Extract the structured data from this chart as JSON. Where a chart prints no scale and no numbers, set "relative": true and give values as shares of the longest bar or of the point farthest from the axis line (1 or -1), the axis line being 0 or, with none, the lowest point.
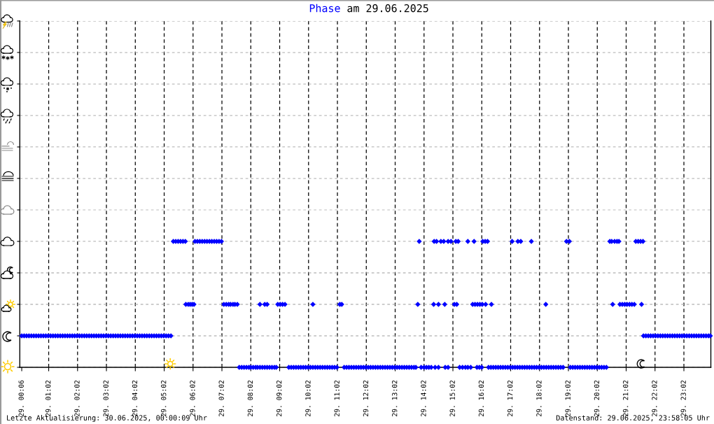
{
  "chart_data": {
    "type": "scatter",
    "title": "Phase am 29.06.2025",
    "x": [
      "2025-06-29T00:06",
      "2025-06-29T00:11",
      "2025-06-29T00:16",
      "2025-06-29T00:21",
      "2025-06-29T00:26",
      "2025-06-29T00:31",
      "2025-06-29T00:36",
      "2025-06-29T00:41",
      "2025-06-29T00:46",
      "2025-06-29T00:51",
      "2025-06-29T00:56",
      "2025-06-29T01:01",
      "2025-06-29T01:06",
      "2025-06-29T01:11",
      "2025-06-29T01:16",
      "2025-06-29T01:21",
      "2025-06-29T01:26",
      "2025-06-29T01:31",
      "2025-06-29T01:36",
      "2025-06-29T01:41",
      "2025-06-29T01:46",
      "2025-06-29T01:51",
      "2025-06-29T01:56",
      "2025-06-29T02:01",
      "2025-06-29T02:06",
      "2025-06-29T02:11",
      "2025-06-29T02:16",
      "2025-06-29T02:21",
      "2025-06-29T02:26",
      "2025-06-29T02:31",
      "2025-06-29T02:36",
      "2025-06-29T02:41",
      "2025-06-29T02:46",
      "2025-06-29T02:51",
      "2025-06-29T02:56",
      "2025-06-29T03:01",
      "2025-06-29T03:06",
      "2025-06-29T03:11",
      "2025-06-29T03:16",
      "2025-06-29T03:21",
      "2025-06-29T03:26",
      "2025-06-29T03:31",
      "2025-06-29T03:36",
      "2025-06-29T03:41",
      "2025-06-29T03:46",
      "2025-06-29T03:51",
      "2025-06-29T03:56",
      "2025-06-29T04:01",
      "2025-06-29T04:06",
      "2025-06-29T04:11",
      "2025-06-29T04:16",
      "2025-06-29T04:21",
      "2025-06-29T04:26",
      "2025-06-29T04:31",
      "2025-06-29T04:36",
      "2025-06-29T04:41",
      "2025-06-29T04:46",
      "2025-06-29T04:51",
      "2025-06-29T04:56",
      "2025-06-29T05:01",
      "2025-06-29T05:06",
      "2025-06-29T05:11",
      "2025-06-29T05:16",
      "2025-06-29T05:21",
      "2025-06-29T05:26",
      "2025-06-29T05:31",
      "2025-06-29T05:36",
      "2025-06-29T05:41",
      "2025-06-29T05:46",
      "2025-06-29T05:47",
      "2025-06-29T05:52",
      "2025-06-29T05:56",
      "2025-06-29T06:00",
      "2025-06-29T06:04",
      "2025-06-29T06:06",
      "2025-06-29T06:11",
      "2025-06-29T06:16",
      "2025-06-29T06:21",
      "2025-06-29T06:26",
      "2025-06-29T06:31",
      "2025-06-29T06:36",
      "2025-06-29T06:41",
      "2025-06-29T06:46",
      "2025-06-29T06:51",
      "2025-06-29T06:56",
      "2025-06-29T07:01",
      "2025-06-29T07:06",
      "2025-06-29T07:11",
      "2025-06-29T07:16",
      "2025-06-29T07:20",
      "2025-06-29T07:25",
      "2025-06-29T07:29",
      "2025-06-29T07:34",
      "2025-06-29T07:38",
      "2025-06-29T07:43",
      "2025-06-29T07:48",
      "2025-06-29T07:53",
      "2025-06-29T07:58",
      "2025-06-29T08:02",
      "2025-06-29T08:07",
      "2025-06-29T08:12",
      "2025-06-29T08:16",
      "2025-06-29T08:21",
      "2025-06-29T08:26",
      "2025-06-29T08:31",
      "2025-06-29T08:36",
      "2025-06-29T08:41",
      "2025-06-29T08:46",
      "2025-06-29T08:51",
      "2025-06-29T08:58",
      "2025-06-29T09:03",
      "2025-06-29T09:08",
      "2025-06-29T09:13",
      "2025-06-29T09:21",
      "2025-06-29T09:26",
      "2025-06-29T09:31",
      "2025-06-29T09:36",
      "2025-06-29T09:41",
      "2025-06-29T09:46",
      "2025-06-29T09:51",
      "2025-06-29T09:56",
      "2025-06-29T10:01",
      "2025-06-29T10:06",
      "2025-06-29T10:11",
      "2025-06-29T10:16",
      "2025-06-29T10:21",
      "2025-06-29T10:26",
      "2025-06-29T10:31",
      "2025-06-29T10:36",
      "2025-06-29T10:41",
      "2025-06-29T10:46",
      "2025-06-29T10:51",
      "2025-06-29T10:56",
      "2025-06-29T11:01",
      "2025-06-29T11:07",
      "2025-06-29T11:11",
      "2025-06-29T11:16",
      "2025-06-29T11:21",
      "2025-06-29T11:26",
      "2025-06-29T11:31",
      "2025-06-29T11:36",
      "2025-06-29T11:41",
      "2025-06-29T11:46",
      "2025-06-29T11:51",
      "2025-06-29T11:56",
      "2025-06-29T12:01",
      "2025-06-29T12:06",
      "2025-06-29T12:11",
      "2025-06-29T12:16",
      "2025-06-29T12:21",
      "2025-06-29T12:26",
      "2025-06-29T12:31",
      "2025-06-29T12:36",
      "2025-06-29T12:41",
      "2025-06-29T12:46",
      "2025-06-29T12:51",
      "2025-06-29T12:56",
      "2025-06-29T13:01",
      "2025-06-29T13:06",
      "2025-06-29T13:11",
      "2025-06-29T13:16",
      "2025-06-29T13:21",
      "2025-06-29T13:26",
      "2025-06-29T13:31",
      "2025-06-29T13:36",
      "2025-06-29T13:41",
      "2025-06-29T13:45",
      "2025-06-29T13:49",
      "2025-06-29T13:52",
      "2025-06-29T13:56",
      "2025-06-29T14:02",
      "2025-06-29T14:07",
      "2025-06-29T14:12",
      "2025-06-29T14:17",
      "2025-06-29T14:22",
      "2025-06-29T14:23",
      "2025-06-29T14:25",
      "2025-06-29T14:28",
      "2025-06-29T14:32",
      "2025-06-29T14:32",
      "2025-06-29T14:37",
      "2025-06-29T14:43",
      "2025-06-29T14:45",
      "2025-06-29T14:46",
      "2025-06-29T14:52",
      "2025-06-29T14:52",
      "2025-06-29T14:58",
      "2025-06-29T15:05",
      "2025-06-29T15:08",
      "2025-06-29T15:10",
      "2025-06-29T15:13",
      "2025-06-29T15:16",
      "2025-06-29T15:22",
      "2025-06-29T15:28",
      "2025-06-29T15:33",
      "2025-06-29T15:39",
      "2025-06-29T15:33",
      "2025-06-29T15:43",
      "2025-06-29T15:46",
      "2025-06-29T15:48",
      "2025-06-29T15:52",
      "2025-06-29T15:53",
      "2025-06-29T15:57",
      "2025-06-29T15:58",
      "2025-06-29T16:02",
      "2025-06-29T16:03",
      "2025-06-29T16:04",
      "2025-06-29T16:09",
      "2025-06-29T16:10",
      "2025-06-29T16:14",
      "2025-06-29T16:22",
      "2025-06-29T16:16",
      "2025-06-29T16:21",
      "2025-06-29T16:26",
      "2025-06-29T16:31",
      "2025-06-29T16:36",
      "2025-06-29T16:41",
      "2025-06-29T16:46",
      "2025-06-29T16:51",
      "2025-06-29T16:56",
      "2025-06-29T17:01",
      "2025-06-29T17:06",
      "2025-06-29T17:11",
      "2025-06-29T17:16",
      "2025-06-29T17:21",
      "2025-06-29T17:26",
      "2025-06-29T17:31",
      "2025-06-29T17:36",
      "2025-06-29T17:41",
      "2025-06-29T17:46",
      "2025-06-29T17:51",
      "2025-06-29T17:56",
      "2025-06-29T18:01",
      "2025-06-29T18:06",
      "2025-06-29T18:11",
      "2025-06-29T18:16",
      "2025-06-29T18:21",
      "2025-06-29T18:26",
      "2025-06-29T18:31",
      "2025-06-29T18:36",
      "2025-06-29T18:41",
      "2025-06-29T18:46",
      "2025-06-29T18:51",
      "2025-06-29T17:05",
      "2025-06-29T17:17",
      "2025-06-29T17:23",
      "2025-06-29T17:45",
      "2025-06-29T18:15",
      "2025-06-29T18:58",
      "2025-06-29T19:04",
      "2025-06-29T19:06",
      "2025-06-29T19:11",
      "2025-06-29T19:16",
      "2025-06-29T19:21",
      "2025-06-29T19:26",
      "2025-06-29T19:31",
      "2025-06-29T19:36",
      "2025-06-29T19:41",
      "2025-06-29T19:46",
      "2025-06-29T19:51",
      "2025-06-29T19:56",
      "2025-06-29T20:01",
      "2025-06-29T20:06",
      "2025-06-29T20:11",
      "2025-06-29T20:16",
      "2025-06-29T20:21",
      "2025-06-29T20:28",
      "2025-06-29T20:32",
      "2025-06-29T20:38",
      "2025-06-29T20:43",
      "2025-06-29T20:47",
      "2025-06-29T20:34",
      "2025-06-29T20:49",
      "2025-06-29T20:54",
      "2025-06-29T20:59",
      "2025-06-29T21:04",
      "2025-06-29T21:09",
      "2025-06-29T21:14",
      "2025-06-29T21:19",
      "2025-06-29T21:22",
      "2025-06-29T21:27",
      "2025-06-29T21:32",
      "2025-06-29T21:37",
      "2025-06-29T21:34",
      "2025-06-29T21:38",
      "2025-06-29T21:43",
      "2025-06-29T21:48",
      "2025-06-29T21:53",
      "2025-06-29T21:58",
      "2025-06-29T22:03",
      "2025-06-29T22:08",
      "2025-06-29T22:13",
      "2025-06-29T22:18",
      "2025-06-29T22:23",
      "2025-06-29T22:28",
      "2025-06-29T22:33",
      "2025-06-29T22:38",
      "2025-06-29T22:43",
      "2025-06-29T22:48",
      "2025-06-29T22:53",
      "2025-06-29T22:58",
      "2025-06-29T23:03",
      "2025-06-29T23:08",
      "2025-06-29T23:13",
      "2025-06-29T23:18",
      "2025-06-29T23:23",
      "2025-06-29T23:28",
      "2025-06-29T23:33",
      "2025-06-29T23:38",
      "2025-06-29T23:43",
      "2025-06-29T23:48",
      "2025-06-29T23:53",
      "2025-06-29T23:57",
      "2025-06-29T08:21",
      "2025-06-29T08:31",
      "2025-06-29T08:36",
      "2025-06-29T08:55",
      "2025-06-29T10:11"
    ],
    "values": [
      0.25,
      0.25,
      0.25,
      0.25,
      0.25,
      0.25,
      0.25,
      0.25,
      0.25,
      0.25,
      0.25,
      0.25,
      0.25,
      0.25,
      0.25,
      0.25,
      0.25,
      0.25,
      0.25,
      0.25,
      0.25,
      0.25,
      0.25,
      0.25,
      0.25,
      0.25,
      0.25,
      0.25,
      0.25,
      0.25,
      0.25,
      0.25,
      0.25,
      0.25,
      0.25,
      0.25,
      0.25,
      0.25,
      0.25,
      0.25,
      0.25,
      0.25,
      0.25,
      0.25,
      0.25,
      0.25,
      0.25,
      0.25,
      0.25,
      0.25,
      0.25,
      0.25,
      0.25,
      0.25,
      0.25,
      0.25,
      0.25,
      0.25,
      0.25,
      0.25,
      0.25,
      0.25,
      0.25,
      1,
      1,
      1,
      1,
      1,
      1,
      0.5,
      0.5,
      0.5,
      0.5,
      0.5,
      1,
      1,
      1,
      1,
      1,
      1,
      1,
      1,
      1,
      1,
      1,
      1,
      0.5,
      0.5,
      0.5,
      0.5,
      0.5,
      0.5,
      0.5,
      0,
      0,
      0,
      0,
      0,
      0,
      0,
      0,
      0,
      0.5,
      0,
      0.5,
      0.5,
      0,
      0,
      0,
      0.5,
      0.5,
      0.5,
      0.5,
      0,
      0,
      0,
      0,
      0,
      0,
      0,
      0,
      0,
      0,
      0.5,
      0,
      0,
      0,
      0,
      0,
      0,
      0,
      0,
      0,
      0,
      0.5,
      0.5,
      0,
      0,
      0,
      0,
      0,
      0,
      0,
      0,
      0,
      0,
      0,
      0,
      0,
      0,
      0,
      0,
      0,
      0,
      0,
      0,
      0,
      0,
      0,
      0,
      0,
      0,
      0,
      0,
      0,
      0,
      0,
      0.5,
      1,
      0,
      0,
      0,
      0,
      0,
      0.5,
      1,
      0,
      1,
      0.5,
      0,
      1,
      1,
      0.5,
      0,
      0,
      1,
      1,
      0.5,
      1,
      0.5,
      1,
      0,
      0,
      0,
      0,
      0,
      1,
      0.5,
      1,
      0.5,
      0,
      0.5,
      0,
      0.5,
      0,
      0.5,
      1,
      1,
      0.5,
      1,
      0.5,
      0,
      0,
      0,
      0,
      0,
      0,
      0,
      0,
      0,
      0,
      0,
      0,
      0,
      0,
      0,
      0,
      0,
      0,
      0,
      0,
      0,
      0,
      0,
      0,
      0,
      0,
      0,
      0,
      0,
      0,
      0,
      0,
      1,
      1,
      1,
      1,
      0.5,
      1,
      1,
      0,
      0,
      0,
      0,
      0,
      0,
      0,
      0,
      0,
      0,
      0,
      0,
      0,
      0,
      0,
      0,
      1,
      1,
      1,
      1,
      1,
      0.5,
      0.5,
      0.5,
      0.5,
      0.5,
      0.5,
      0.5,
      0.5,
      1,
      1,
      1,
      1,
      0.5,
      0.25,
      0.25,
      0.25,
      0.25,
      0.25,
      0.25,
      0.25,
      0.25,
      0.25,
      0.25,
      0.25,
      0.25,
      0.25,
      0.25,
      0.25,
      0.25,
      0.25,
      0.25,
      0.25,
      0.25,
      0.25,
      0.25,
      0.25,
      0.25,
      0.25,
      0.25,
      0.25,
      0.25,
      0.25,
      0,
      0,
      0,
      0,
      0
    ],
    "relative": true,
    "color": "#0000ff",
    "marker": "diamond",
    "xlim": [
      "2025-06-29T00:02",
      "2025-06-29T23:58"
    ],
    "xticks": [
      {
        "value": "2025-06-29T00:06",
        "label": "29. 00:06"
      },
      {
        "value": "2025-06-29T01:02",
        "label": "29. 01:02"
      },
      {
        "value": "2025-06-29T02:02",
        "label": "29. 02:02"
      },
      {
        "value": "2025-06-29T03:02",
        "label": "29. 03:02"
      },
      {
        "value": "2025-06-29T04:02",
        "label": "29. 04:02"
      },
      {
        "value": "2025-06-29T05:02",
        "label": "29. 05:02"
      },
      {
        "value": "2025-06-29T06:02",
        "label": "29. 06:02"
      },
      {
        "value": "2025-06-29T07:02",
        "label": "29. 07:02"
      },
      {
        "value": "2025-06-29T08:02",
        "label": "29. 08:02"
      },
      {
        "value": "2025-06-29T09:02",
        "label": "29. 09:02"
      },
      {
        "value": "2025-06-29T10:02",
        "label": "29. 10:02"
      },
      {
        "value": "2025-06-29T11:02",
        "label": "29. 11:02"
      },
      {
        "value": "2025-06-29T12:02",
        "label": "29. 12:02"
      },
      {
        "value": "2025-06-29T13:02",
        "label": "29. 13:02"
      },
      {
        "value": "2025-06-29T14:02",
        "label": "29. 14:02"
      },
      {
        "value": "2025-06-29T15:02",
        "label": "29. 15:02"
      },
      {
        "value": "2025-06-29T16:02",
        "label": "29. 16:02"
      },
      {
        "value": "2025-06-29T17:02",
        "label": "29. 17:02"
      },
      {
        "value": "2025-06-29T18:02",
        "label": "29. 18:02"
      },
      {
        "value": "2025-06-29T19:02",
        "label": "29. 19:02"
      },
      {
        "value": "2025-06-29T20:02",
        "label": "29. 20:02"
      },
      {
        "value": "2025-06-29T21:02",
        "label": "29. 21:02"
      },
      {
        "value": "2025-06-29T22:02",
        "label": "29. 22:02"
      },
      {
        "value": "2025-06-29T23:02",
        "label": "29. 23:02"
      }
    ],
    "tick_labels": "x",
    "grid": true,
    "annotations": [
      "Letzte Aktualisierung: 30.06.2025, 00:00:09 Uhr",
      "Datenstand: 29.06.2025, 23:58:05 Uhr"
    ]
  }
}
